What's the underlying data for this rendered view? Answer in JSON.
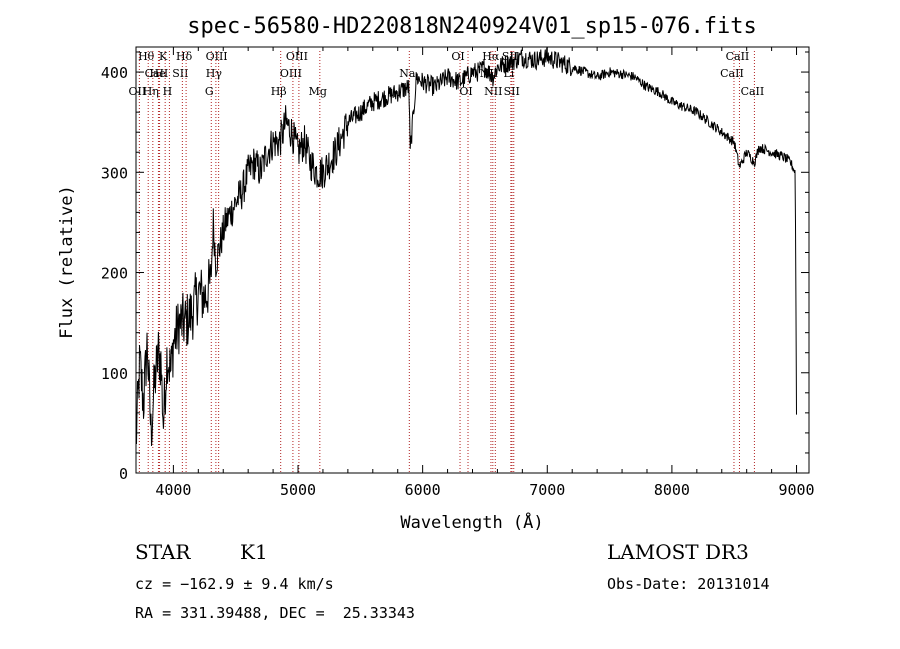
{
  "chart_data": {
    "type": "line",
    "title": "spec-56580-HD220818N240924V01_sp15-076.fits",
    "xlabel": "Wavelength (Å)",
    "ylabel": "Flux (relative)",
    "xlim": [
      3700,
      9100
    ],
    "ylim": [
      0,
      425
    ],
    "x_ticks": [
      4000,
      5000,
      6000,
      7000,
      8000,
      9000
    ],
    "y_ticks": [
      0,
      100,
      200,
      300,
      400
    ],
    "grid": false,
    "series": [
      {
        "color": "#000000",
        "x": [
          3700,
          3730,
          3760,
          3790,
          3820,
          3850,
          3880,
          3900,
          3920,
          3950,
          3980,
          4000,
          4050,
          4100,
          4150,
          4200,
          4250,
          4300,
          4320,
          4340,
          4380,
          4420,
          4460,
          4500,
          4550,
          4600,
          4650,
          4700,
          4750,
          4800,
          4850,
          4880,
          4900,
          4950,
          5000,
          5050,
          5100,
          5150,
          5200,
          5250,
          5300,
          5400,
          5500,
          5600,
          5700,
          5800,
          5890,
          5900,
          5950,
          6000,
          6100,
          6200,
          6300,
          6400,
          6450,
          6500,
          6563,
          6600,
          6700,
          6800,
          6900,
          7000,
          7100,
          7200,
          7300,
          7400,
          7500,
          7600,
          7700,
          7800,
          7900,
          8000,
          8100,
          8200,
          8300,
          8400,
          8500,
          8542,
          8600,
          8662,
          8700,
          8800,
          8900,
          8950,
          8990,
          9000
        ],
        "y": [
          30,
          110,
          70,
          130,
          40,
          90,
          120,
          110,
          50,
          120,
          100,
          130,
          150,
          150,
          160,
          180,
          175,
          190,
          250,
          210,
          230,
          250,
          260,
          270,
          280,
          300,
          310,
          300,
          320,
          330,
          330,
          340,
          350,
          340,
          320,
          330,
          310,
          300,
          300,
          310,
          320,
          350,
          360,
          370,
          375,
          380,
          385,
          320,
          395,
          390,
          385,
          395,
          390,
          400,
          400,
          405,
          395,
          405,
          410,
          415,
          412,
          415,
          410,
          405,
          400,
          395,
          400,
          398,
          395,
          385,
          380,
          370,
          365,
          360,
          350,
          340,
          330,
          305,
          320,
          310,
          325,
          320,
          315,
          310,
          300,
          60
        ]
      }
    ],
    "line_markers": [
      {
        "label": "Hθ",
        "x": 3798,
        "row": 1
      },
      {
        "label": "OII",
        "x": 3727,
        "row": 3
      },
      {
        "label": "Hη",
        "x": 3835,
        "row": 3
      },
      {
        "label": "CaII",
        "x": 3880,
        "row": 2
      },
      {
        "label": "He",
        "x": 3889,
        "row": 2
      },
      {
        "label": "K",
        "x": 3934,
        "row": 1
      },
      {
        "label": "H",
        "x": 3968,
        "row": 3
      },
      {
        "label": "SII",
        "x": 4072,
        "row": 2
      },
      {
        "label": "Hδ",
        "x": 4102,
        "row": 1
      },
      {
        "label": "OIII",
        "x": 4363,
        "row": 1
      },
      {
        "label": "Hγ",
        "x": 4341,
        "row": 2
      },
      {
        "label": "G",
        "x": 4304,
        "row": 3
      },
      {
        "label": "Hβ",
        "x": 4861,
        "row": 3
      },
      {
        "label": "OIII",
        "x": 5007,
        "row": 1
      },
      {
        "label": "OIII",
        "x": 4959,
        "row": 2
      },
      {
        "label": "Mg",
        "x": 5175,
        "row": 3
      },
      {
        "label": "Na",
        "x": 5893,
        "row": 2
      },
      {
        "label": "OI",
        "x": 6300,
        "row": 1
      },
      {
        "label": "OI",
        "x": 6364,
        "row": 3
      },
      {
        "label": "Hα",
        "x": 6563,
        "row": 1
      },
      {
        "label": "NII",
        "x": 6548,
        "row": 2
      },
      {
        "label": "NII",
        "x": 6583,
        "row": 3
      },
      {
        "label": "SII",
        "x": 6717,
        "row": 1
      },
      {
        "label": "Li",
        "x": 6708,
        "row": 2
      },
      {
        "label": "SII",
        "x": 6731,
        "row": 3
      },
      {
        "label": "CaII",
        "x": 8542,
        "row": 1
      },
      {
        "label": "CaII",
        "x": 8498,
        "row": 2
      },
      {
        "label": "CaII",
        "x": 8662,
        "row": 3
      }
    ]
  },
  "info": {
    "object_class": "STAR",
    "subclass": "K1",
    "survey": "LAMOST DR3",
    "cz": "cz = −162.9 ± 9.4 km/s",
    "obs_date": "Obs-Date: 20131014",
    "coords": "RA = 331.39488, DEC =  25.33343"
  }
}
